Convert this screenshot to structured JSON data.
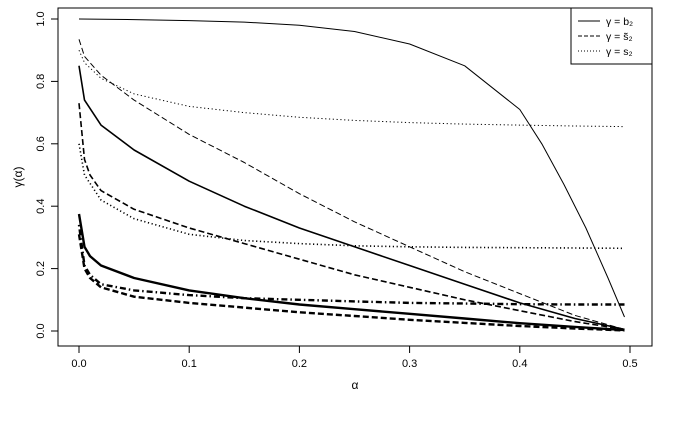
{
  "chart_data": {
    "type": "line",
    "xlabel": "α",
    "ylabel": "γ(α)",
    "xlim": [
      0.0,
      0.5
    ],
    "ylim": [
      0.0,
      1.0
    ],
    "xticks": [
      "0.0",
      "0.1",
      "0.2",
      "0.3",
      "0.4",
      "0.5"
    ],
    "yticks": [
      "0.0",
      "0.2",
      "0.4",
      "0.6",
      "0.8",
      "1.0"
    ],
    "grid": false,
    "legend_position": "top-right",
    "legend": [
      {
        "label": "γ = b₂",
        "style": "solid"
      },
      {
        "label": "γ = s̃₂",
        "style": "dashed"
      },
      {
        "label": "γ = s₂",
        "style": "dotted"
      }
    ],
    "series": [
      {
        "group": 1,
        "style": "solid",
        "weight": "thin",
        "x": [
          0,
          0.05,
          0.1,
          0.15,
          0.2,
          0.25,
          0.3,
          0.35,
          0.4,
          0.42,
          0.44,
          0.46,
          0.48,
          0.495
        ],
        "y": [
          1.0,
          0.998,
          0.995,
          0.99,
          0.98,
          0.96,
          0.92,
          0.85,
          0.71,
          0.6,
          0.47,
          0.33,
          0.17,
          0.045
        ]
      },
      {
        "group": 1,
        "style": "dashed",
        "weight": "thin",
        "x": [
          0,
          0.005,
          0.02,
          0.05,
          0.1,
          0.15,
          0.2,
          0.25,
          0.3,
          0.35,
          0.4,
          0.45,
          0.495
        ],
        "y": [
          0.935,
          0.88,
          0.82,
          0.74,
          0.63,
          0.54,
          0.44,
          0.35,
          0.27,
          0.19,
          0.12,
          0.05,
          0.005
        ]
      },
      {
        "group": 1,
        "style": "dotted",
        "weight": "thin",
        "x": [
          0,
          0.005,
          0.02,
          0.05,
          0.1,
          0.15,
          0.2,
          0.25,
          0.3,
          0.35,
          0.4,
          0.45,
          0.495
        ],
        "y": [
          0.9,
          0.86,
          0.81,
          0.76,
          0.72,
          0.7,
          0.685,
          0.675,
          0.668,
          0.663,
          0.66,
          0.657,
          0.655
        ]
      },
      {
        "group": 2,
        "style": "solid",
        "weight": "medium",
        "x": [
          0,
          0.005,
          0.02,
          0.05,
          0.1,
          0.15,
          0.2,
          0.25,
          0.3,
          0.35,
          0.4,
          0.45,
          0.495
        ],
        "y": [
          0.85,
          0.74,
          0.66,
          0.58,
          0.48,
          0.4,
          0.33,
          0.27,
          0.21,
          0.15,
          0.09,
          0.04,
          0.005
        ]
      },
      {
        "group": 2,
        "style": "dashed",
        "weight": "medium",
        "x": [
          0,
          0.005,
          0.01,
          0.02,
          0.05,
          0.1,
          0.15,
          0.2,
          0.25,
          0.3,
          0.35,
          0.4,
          0.45,
          0.495
        ],
        "y": [
          0.73,
          0.55,
          0.5,
          0.45,
          0.39,
          0.33,
          0.28,
          0.23,
          0.18,
          0.14,
          0.1,
          0.065,
          0.03,
          0.005
        ]
      },
      {
        "group": 2,
        "style": "dotted",
        "weight": "medium",
        "x": [
          0,
          0.005,
          0.02,
          0.05,
          0.1,
          0.15,
          0.2,
          0.25,
          0.3,
          0.35,
          0.4,
          0.45,
          0.495
        ],
        "y": [
          0.6,
          0.5,
          0.42,
          0.36,
          0.31,
          0.29,
          0.28,
          0.273,
          0.27,
          0.268,
          0.267,
          0.266,
          0.265
        ]
      },
      {
        "group": 3,
        "style": "solid",
        "weight": "thick",
        "x": [
          0,
          0.005,
          0.01,
          0.02,
          0.05,
          0.1,
          0.15,
          0.2,
          0.25,
          0.3,
          0.35,
          0.4,
          0.45,
          0.495
        ],
        "y": [
          0.375,
          0.27,
          0.24,
          0.21,
          0.17,
          0.13,
          0.105,
          0.085,
          0.07,
          0.055,
          0.04,
          0.025,
          0.013,
          0.003
        ]
      },
      {
        "group": 3,
        "style": "dashed",
        "weight": "thick",
        "x": [
          0,
          0.005,
          0.01,
          0.02,
          0.05,
          0.1,
          0.15,
          0.2,
          0.25,
          0.3,
          0.35,
          0.4,
          0.45,
          0.495
        ],
        "y": [
          0.31,
          0.2,
          0.17,
          0.14,
          0.11,
          0.09,
          0.075,
          0.06,
          0.048,
          0.036,
          0.026,
          0.016,
          0.008,
          0.002
        ]
      },
      {
        "group": 3,
        "style": "dotdash",
        "weight": "thick",
        "x": [
          0,
          0.005,
          0.01,
          0.02,
          0.05,
          0.1,
          0.15,
          0.2,
          0.25,
          0.3,
          0.35,
          0.4,
          0.45,
          0.495
        ],
        "y": [
          0.34,
          0.21,
          0.18,
          0.15,
          0.13,
          0.115,
          0.105,
          0.1,
          0.095,
          0.09,
          0.088,
          0.086,
          0.085,
          0.085
        ]
      }
    ]
  }
}
